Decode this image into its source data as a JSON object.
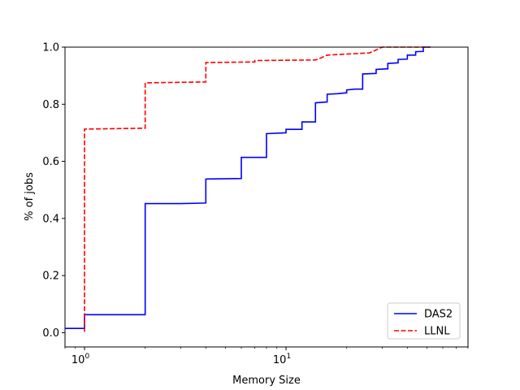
{
  "chart_data": {
    "type": "line",
    "xlabel": "Memory Size",
    "ylabel": "% of jobs",
    "xscale": "log",
    "xlim": [
      0.8,
      80
    ],
    "ylim": [
      -0.05,
      1.0
    ],
    "grid": false,
    "legend_position": "bottom-right",
    "x_ticks": [
      {
        "value": 1,
        "label": "10",
        "exp": "0"
      },
      {
        "value": 10,
        "label": "10",
        "exp": "1"
      }
    ],
    "y_ticks": [
      {
        "value": 0.0,
        "label": "0.0"
      },
      {
        "value": 0.2,
        "label": "0.2"
      },
      {
        "value": 0.4,
        "label": "0.4"
      },
      {
        "value": 0.6,
        "label": "0.6"
      },
      {
        "value": 0.8,
        "label": "0.8"
      },
      {
        "value": 1.0,
        "label": "1.0"
      }
    ],
    "series": [
      {
        "name": "DAS2",
        "color": "#0000ff",
        "style": "solid",
        "step": "post",
        "points": [
          [
            0.8,
            0.015
          ],
          [
            1.0,
            0.015
          ],
          [
            1.0,
            0.063
          ],
          [
            2.0,
            0.063
          ],
          [
            2.0,
            0.452
          ],
          [
            3.0,
            0.452
          ],
          [
            4.0,
            0.454
          ],
          [
            4.0,
            0.538
          ],
          [
            6.0,
            0.54
          ],
          [
            6.0,
            0.614
          ],
          [
            8.0,
            0.614
          ],
          [
            8.0,
            0.697
          ],
          [
            10.0,
            0.7
          ],
          [
            10.0,
            0.712
          ],
          [
            12.0,
            0.712
          ],
          [
            12.0,
            0.738
          ],
          [
            14.0,
            0.738
          ],
          [
            14.0,
            0.805
          ],
          [
            16.0,
            0.808
          ],
          [
            16.0,
            0.835
          ],
          [
            18.0,
            0.837
          ],
          [
            20.0,
            0.84
          ],
          [
            20.0,
            0.85
          ],
          [
            22.0,
            0.853
          ],
          [
            24.0,
            0.853
          ],
          [
            24.0,
            0.906
          ],
          [
            28.0,
            0.908
          ],
          [
            28.0,
            0.922
          ],
          [
            32.0,
            0.924
          ],
          [
            32.0,
            0.943
          ],
          [
            36.0,
            0.945
          ],
          [
            36.0,
            0.957
          ],
          [
            40.0,
            0.958
          ],
          [
            40.0,
            0.972
          ],
          [
            44.0,
            0.972
          ],
          [
            44.0,
            0.984
          ],
          [
            48.0,
            0.985
          ],
          [
            48.0,
            1.0
          ],
          [
            52.0,
            1.0
          ]
        ]
      },
      {
        "name": "LLNL",
        "color": "#ff0000",
        "style": "dashed",
        "step": "post",
        "points": [
          [
            1.0,
            0.003
          ],
          [
            1.0,
            0.713
          ],
          [
            2.0,
            0.716
          ],
          [
            2.0,
            0.875
          ],
          [
            4.0,
            0.878
          ],
          [
            4.0,
            0.946
          ],
          [
            7.0,
            0.948
          ],
          [
            7.0,
            0.953
          ],
          [
            14.0,
            0.955
          ],
          [
            15.0,
            0.963
          ],
          [
            16.0,
            0.972
          ],
          [
            26.0,
            0.98
          ],
          [
            28.0,
            0.99
          ],
          [
            30.0,
            1.0
          ],
          [
            52.0,
            1.0
          ]
        ]
      }
    ]
  }
}
